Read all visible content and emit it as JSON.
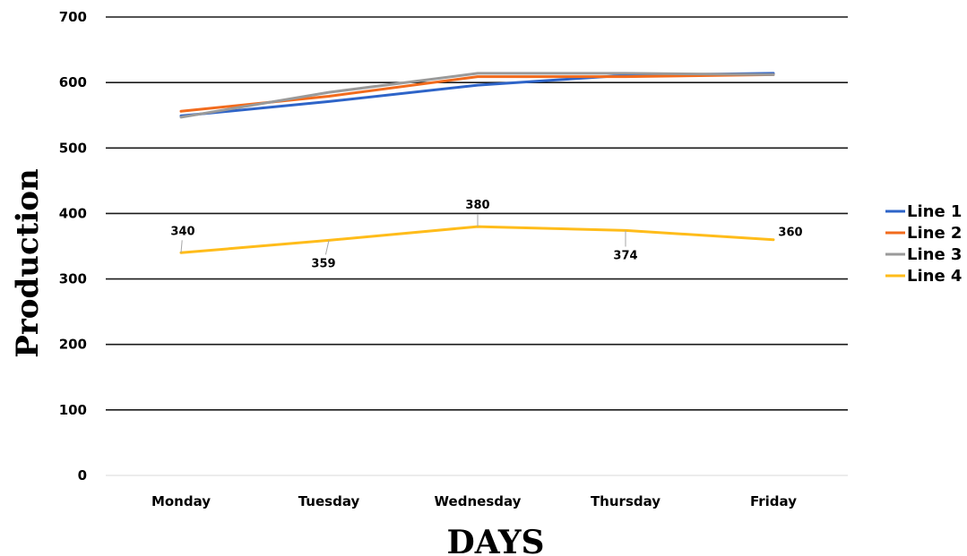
{
  "chart_data": {
    "type": "line",
    "title": "",
    "xlabel": "DAYS",
    "ylabel": "Production",
    "categories": [
      "Monday",
      "Tuesday",
      "Wednesday",
      "Thursday",
      "Friday"
    ],
    "yticks": [
      "0",
      "100",
      "200",
      "300",
      "400",
      "500",
      "600",
      "700"
    ],
    "ylim": [
      0,
      700
    ],
    "grid": true,
    "legend_position": "right",
    "series": [
      {
        "name": "Line 1",
        "color": "#2E64C8",
        "values": [
          549,
          571,
          596,
          611,
          614
        ],
        "labels": false
      },
      {
        "name": "Line 2",
        "color": "#F26B1D",
        "values": [
          556,
          579,
          609,
          609,
          612
        ],
        "labels": false
      },
      {
        "name": "Line 3",
        "color": "#9A9A9A",
        "values": [
          547,
          585,
          614,
          614,
          612
        ],
        "labels": false
      },
      {
        "name": "Line 4",
        "color": "#FFBC1A",
        "values": [
          340,
          359,
          380,
          374,
          360
        ],
        "labels": true
      }
    ],
    "data_labels": [
      "340",
      "359",
      "380",
      "374",
      "360"
    ]
  }
}
